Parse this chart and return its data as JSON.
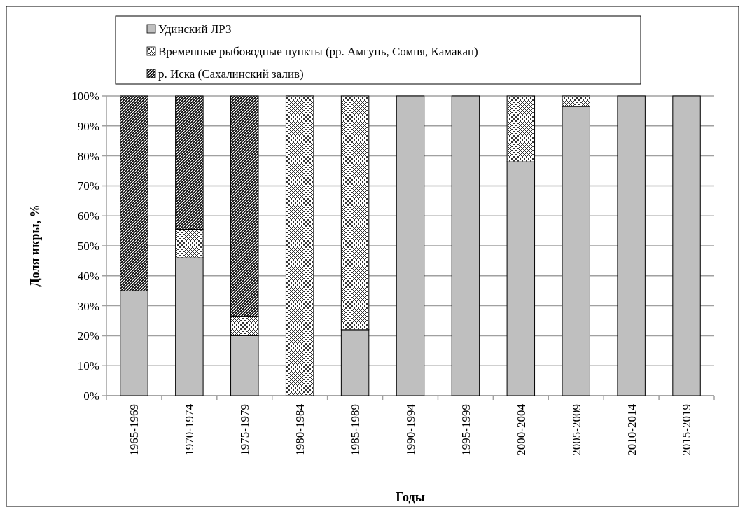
{
  "chart_data": {
    "type": "bar",
    "stacked": true,
    "xlabel": "Годы",
    "ylabel": "Доля икры, %",
    "categories": [
      "1965-1969",
      "1970-1974",
      "1975-1979",
      "1980-1984",
      "1985-1989",
      "1990-1994",
      "1995-1999",
      "2000-2004",
      "2005-2009",
      "2010-2014",
      "2015-2019"
    ],
    "series": [
      {
        "name": "Удинский ЛРЗ",
        "color": "#bfbfbf",
        "values": [
          35,
          46,
          20,
          0,
          22,
          100,
          100,
          78,
          96.5,
          100,
          100
        ]
      },
      {
        "name": "Временные рыбоводные  пункты (рр. Амгунь,  Сомня, Камакан)",
        "color": "#ffffff",
        "values": [
          0,
          9.5,
          6.5,
          100,
          78,
          0,
          0,
          22,
          3.5,
          0,
          0
        ]
      },
      {
        "name": "р. Иска (Сахалинский залив)",
        "color": "#404040",
        "values": [
          65,
          44.5,
          73.5,
          0,
          0,
          0,
          0,
          0,
          0,
          0,
          0
        ]
      }
    ],
    "ylim": [
      0,
      100
    ],
    "yticks": [
      {
        "value": 0,
        "label": "0%"
      },
      {
        "value": 10,
        "label": "10%"
      },
      {
        "value": 20,
        "label": "20%"
      },
      {
        "value": 30,
        "label": "30%"
      },
      {
        "value": 40,
        "label": "40%"
      },
      {
        "value": 50,
        "label": "50%"
      },
      {
        "value": 60,
        "label": "60%"
      },
      {
        "value": 70,
        "label": "70%"
      },
      {
        "value": 80,
        "label": "80%"
      },
      {
        "value": 90,
        "label": "90%"
      },
      {
        "value": 100,
        "label": "100%"
      }
    ],
    "grid": "y",
    "legend": "top"
  }
}
